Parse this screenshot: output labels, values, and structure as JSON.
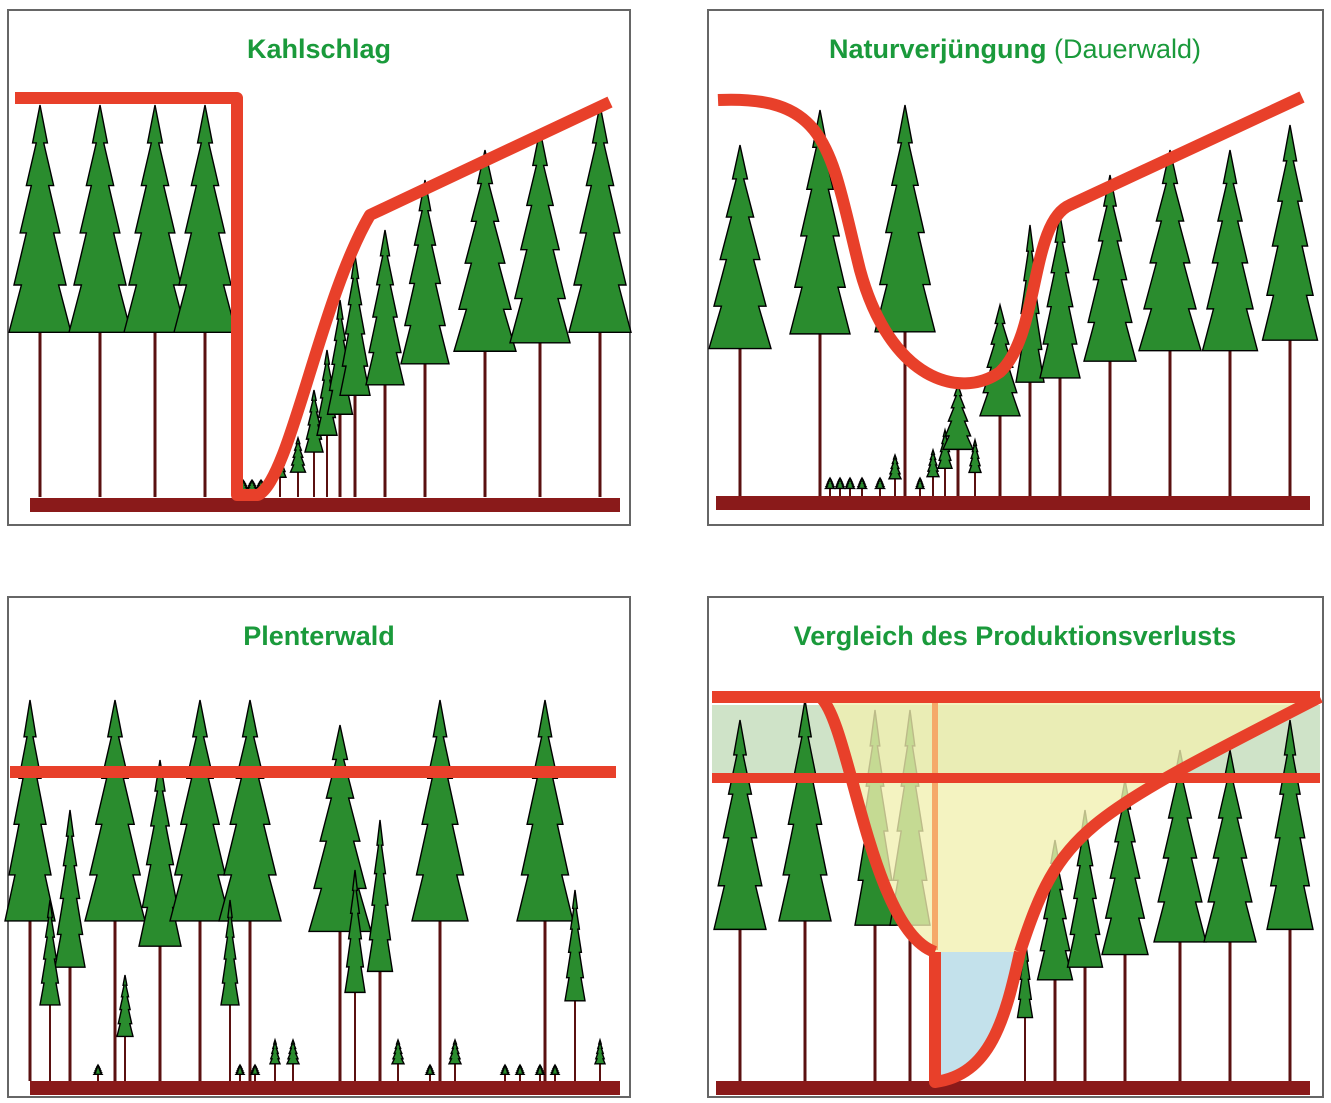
{
  "panels": [
    {
      "title": "Kahlschlag"
    },
    {
      "title": "Naturverjüngung",
      "subtitle": "(Dauerwald)"
    },
    {
      "title": "Plenterwald"
    },
    {
      "title": "Vergleich des Produktionsverlusts"
    }
  ]
}
